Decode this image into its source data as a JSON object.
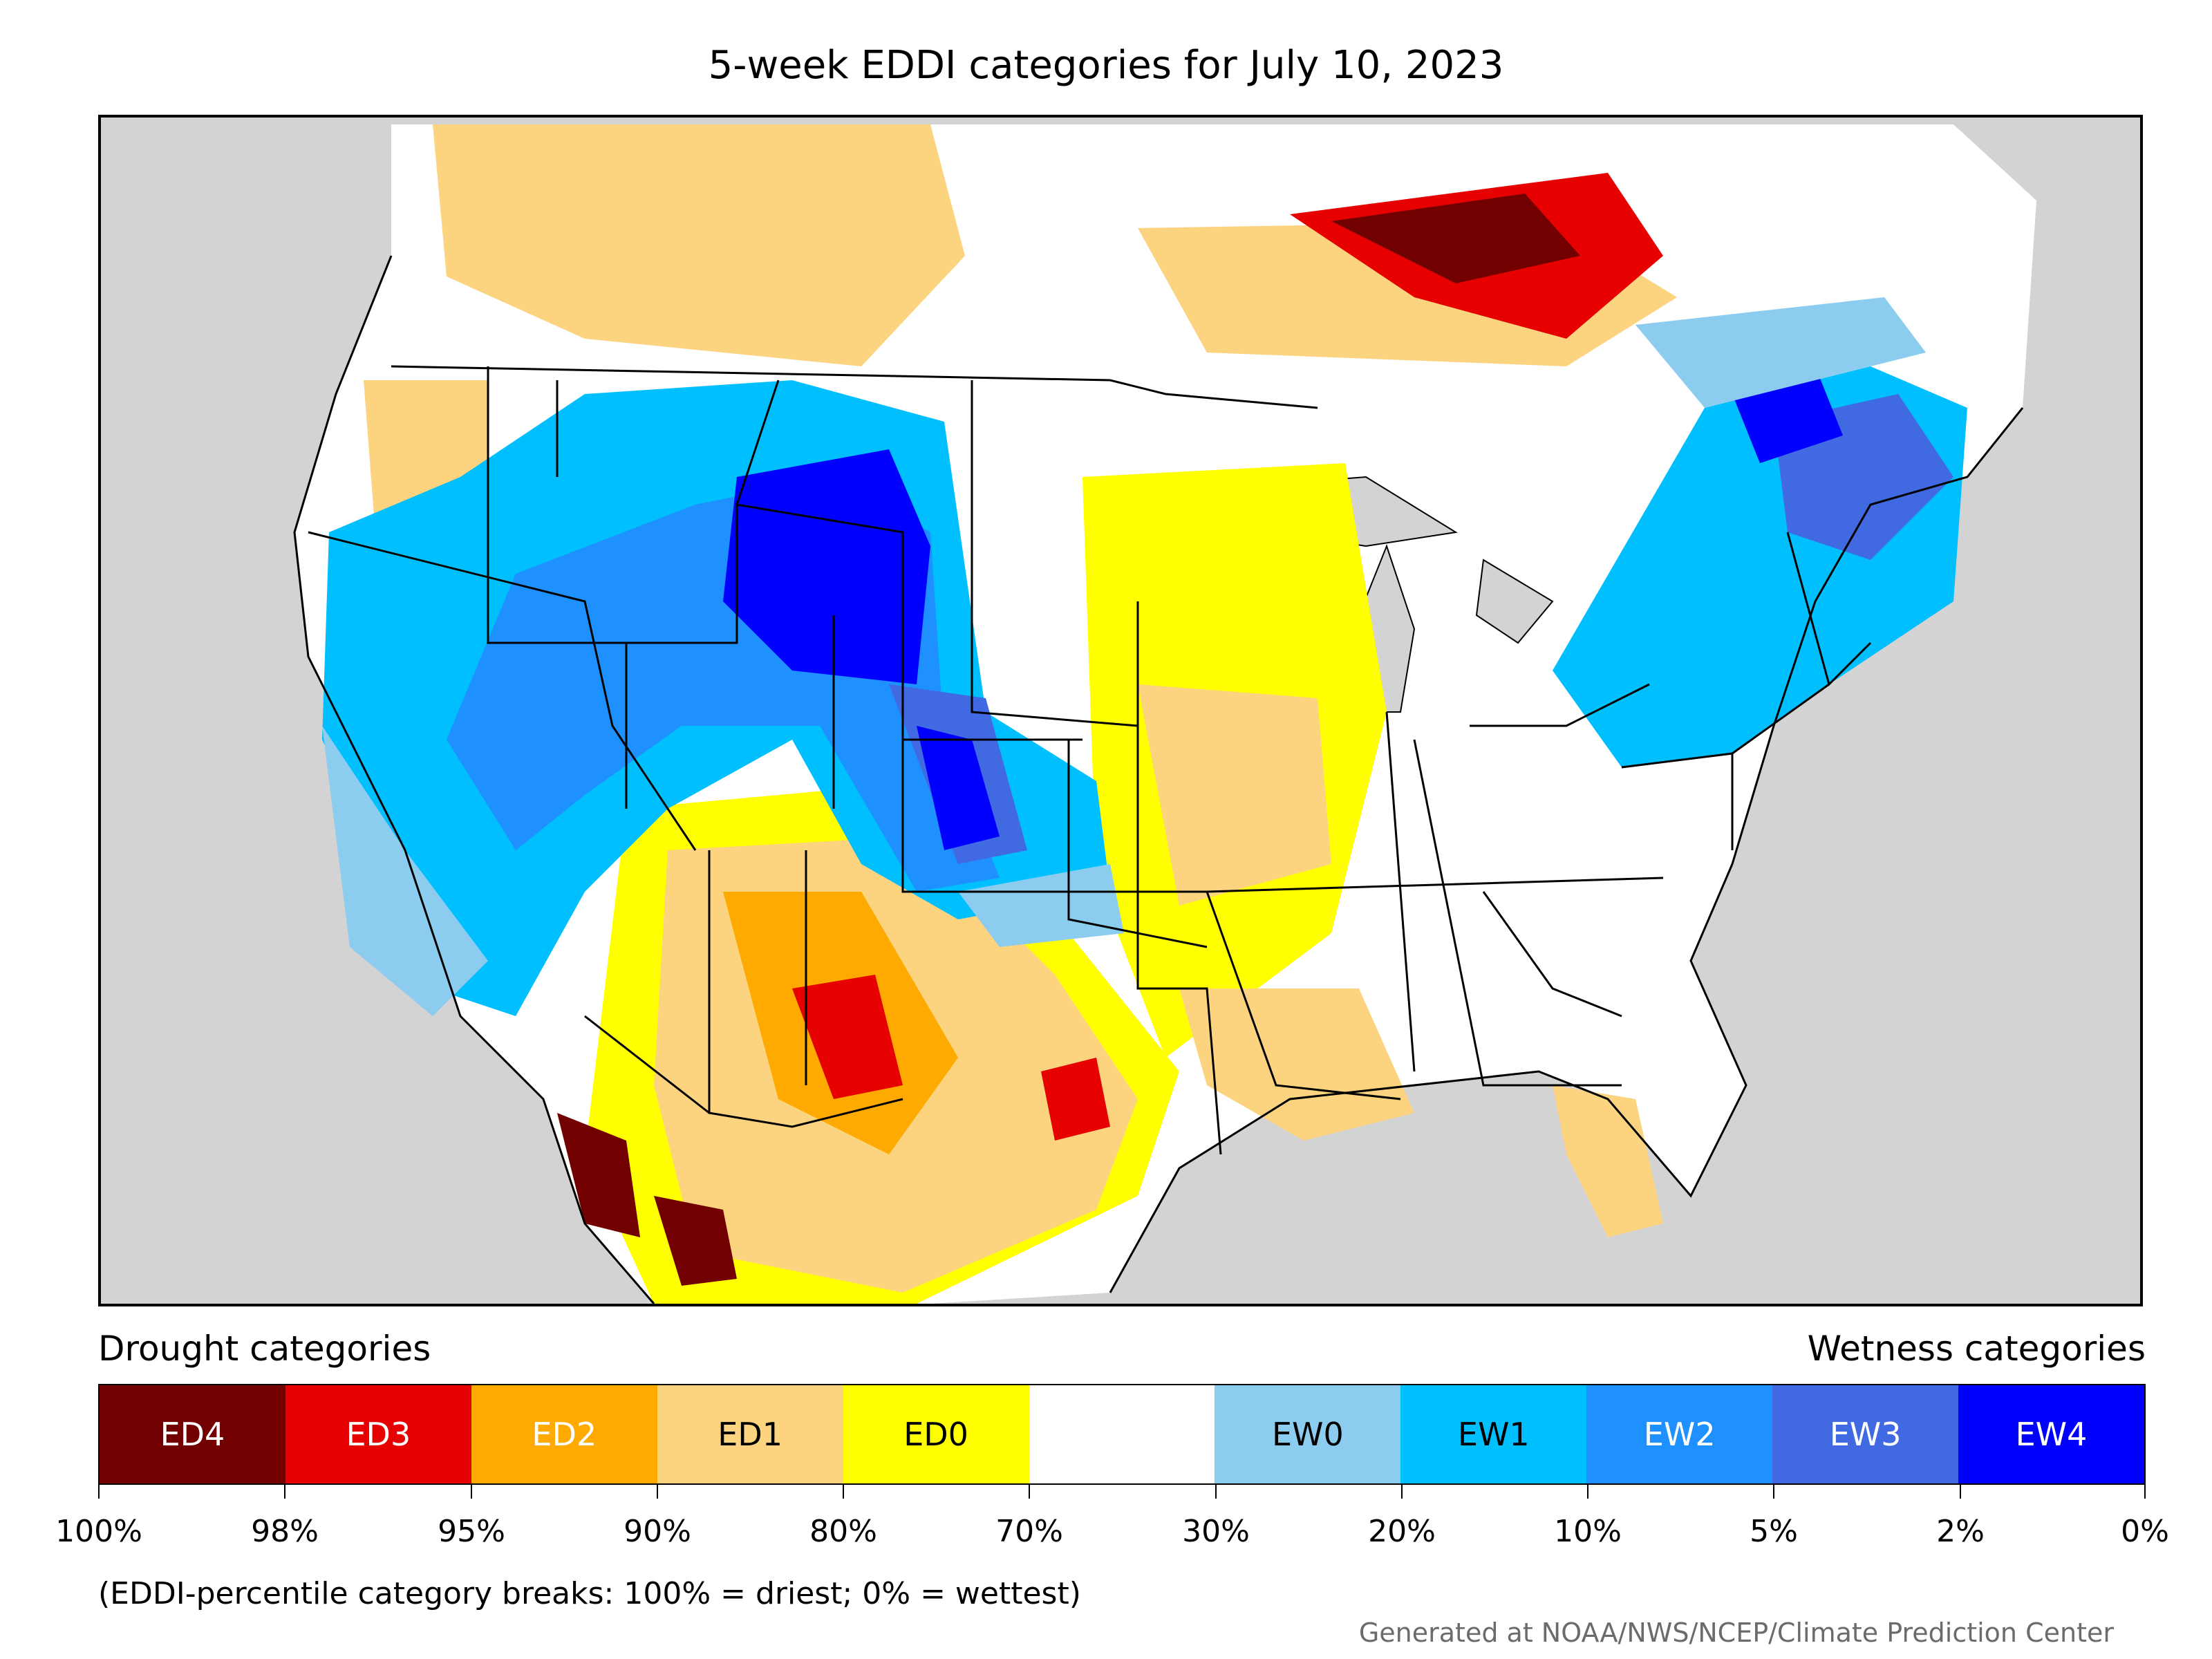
{
  "title": "5-week EDDI categories for July 10, 2023",
  "map": {
    "region": "Contiguous United States with parts of Canada and Mexico",
    "background_color": "#d3d3d3",
    "land_default_color": "#ffffff",
    "state_border_color": "#000000"
  },
  "legend": {
    "drought_heading": "Drought categories",
    "wetness_heading": "Wetness categories",
    "categories": [
      {
        "label": "ED4",
        "color": "#730000",
        "text_color": "#ffffff"
      },
      {
        "label": "ED3",
        "color": "#e60000",
        "text_color": "#ffffff"
      },
      {
        "label": "ED2",
        "color": "#ffaa00",
        "text_color": "#ffffff"
      },
      {
        "label": "ED1",
        "color": "#fcd37f",
        "text_color": "#000000"
      },
      {
        "label": "ED0",
        "color": "#ffff00",
        "text_color": "#000000"
      },
      {
        "label": "",
        "color": "#ffffff",
        "text_color": "#000000"
      },
      {
        "label": "EW0",
        "color": "#8ccdef",
        "text_color": "#000000"
      },
      {
        "label": "EW1",
        "color": "#00bfff",
        "text_color": "#000000"
      },
      {
        "label": "EW2",
        "color": "#1e90ff",
        "text_color": "#ffffff"
      },
      {
        "label": "EW3",
        "color": "#4169e1",
        "text_color": "#ffffff"
      },
      {
        "label": "EW4",
        "color": "#0000ff",
        "text_color": "#ffffff"
      }
    ],
    "breaks": [
      "100%",
      "98%",
      "95%",
      "90%",
      "80%",
      "70%",
      "30%",
      "20%",
      "10%",
      "5%",
      "2%",
      "0%"
    ]
  },
  "note": "(EDDI-percentile category breaks: 100% = driest; 0% = wettest)",
  "credit": "Generated at NOAA/NWS/NCEP/Climate Prediction Center"
}
